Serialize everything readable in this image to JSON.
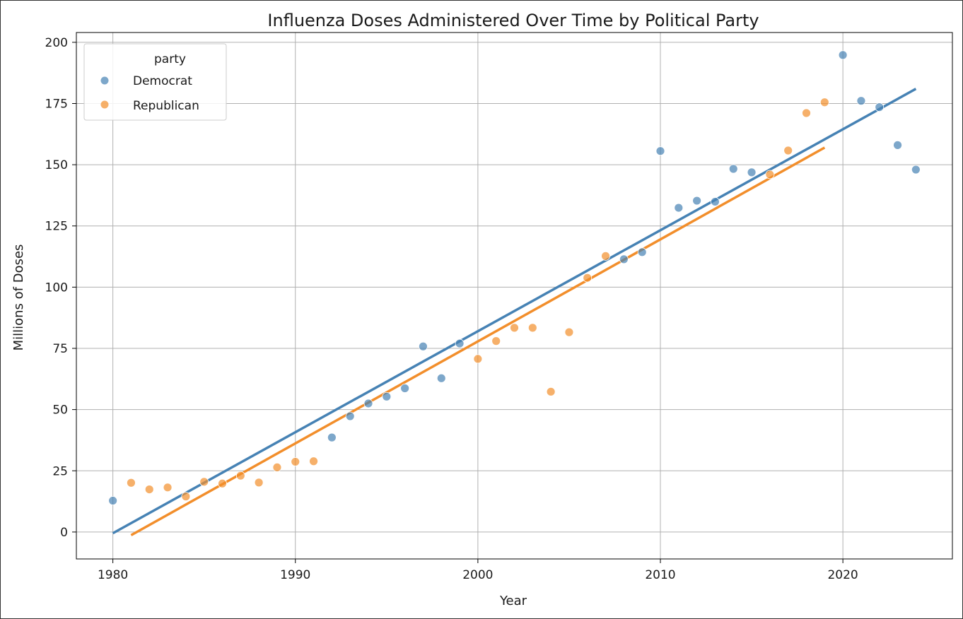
{
  "chart_data": {
    "type": "scatter",
    "title": "Influenza Doses Administered Over Time by Political Party",
    "xlabel": "Year",
    "ylabel": "Millions of Doses",
    "xlim": [
      1978,
      2026
    ],
    "ylim": [
      -11,
      204
    ],
    "xticks": [
      1980,
      1990,
      2000,
      2010,
      2020
    ],
    "yticks": [
      0,
      25,
      50,
      75,
      100,
      125,
      150,
      175,
      200
    ],
    "grid": true,
    "legend": {
      "title": "party",
      "placement": "top-left"
    },
    "series": [
      {
        "name": "Democrat",
        "color": "#4682b4",
        "points": [
          {
            "x": 1980,
            "y": 12.8
          },
          {
            "x": 1992,
            "y": 38.6
          },
          {
            "x": 1993,
            "y": 47.3
          },
          {
            "x": 1994,
            "y": 52.5
          },
          {
            "x": 1995,
            "y": 55.3
          },
          {
            "x": 1996,
            "y": 58.7
          },
          {
            "x": 1997,
            "y": 75.8
          },
          {
            "x": 1998,
            "y": 62.8
          },
          {
            "x": 1999,
            "y": 77.0
          },
          {
            "x": 2008,
            "y": 111.4
          },
          {
            "x": 2009,
            "y": 114.3
          },
          {
            "x": 2010,
            "y": 155.6
          },
          {
            "x": 2011,
            "y": 132.4
          },
          {
            "x": 2012,
            "y": 135.3
          },
          {
            "x": 2013,
            "y": 134.9
          },
          {
            "x": 2014,
            "y": 148.3
          },
          {
            "x": 2015,
            "y": 146.9
          },
          {
            "x": 2020,
            "y": 194.8
          },
          {
            "x": 2021,
            "y": 176.1
          },
          {
            "x": 2022,
            "y": 173.5
          },
          {
            "x": 2023,
            "y": 158.0
          },
          {
            "x": 2024,
            "y": 148.0
          }
        ],
        "trend": [
          {
            "x": 1980,
            "y": -0.5
          },
          {
            "x": 2024,
            "y": 181.0
          }
        ]
      },
      {
        "name": "Republican",
        "color": "#f28e2b",
        "points": [
          {
            "x": 1981,
            "y": 20.1
          },
          {
            "x": 1982,
            "y": 17.4
          },
          {
            "x": 1983,
            "y": 18.2
          },
          {
            "x": 1984,
            "y": 14.5
          },
          {
            "x": 1985,
            "y": 20.5
          },
          {
            "x": 1986,
            "y": 19.8
          },
          {
            "x": 1987,
            "y": 23.0
          },
          {
            "x": 1988,
            "y": 20.2
          },
          {
            "x": 1989,
            "y": 26.4
          },
          {
            "x": 1990,
            "y": 28.7
          },
          {
            "x": 1991,
            "y": 28.9
          },
          {
            "x": 2000,
            "y": 70.7
          },
          {
            "x": 2001,
            "y": 78.0
          },
          {
            "x": 2002,
            "y": 83.4
          },
          {
            "x": 2003,
            "y": 83.4
          },
          {
            "x": 2004,
            "y": 57.3
          },
          {
            "x": 2005,
            "y": 81.6
          },
          {
            "x": 2006,
            "y": 103.8
          },
          {
            "x": 2007,
            "y": 112.7
          },
          {
            "x": 2016,
            "y": 146.0
          },
          {
            "x": 2017,
            "y": 155.8
          },
          {
            "x": 2018,
            "y": 171.1
          },
          {
            "x": 2019,
            "y": 175.5
          }
        ],
        "trend": [
          {
            "x": 1981,
            "y": -1.3
          },
          {
            "x": 2019,
            "y": 157.0
          }
        ]
      }
    ]
  }
}
